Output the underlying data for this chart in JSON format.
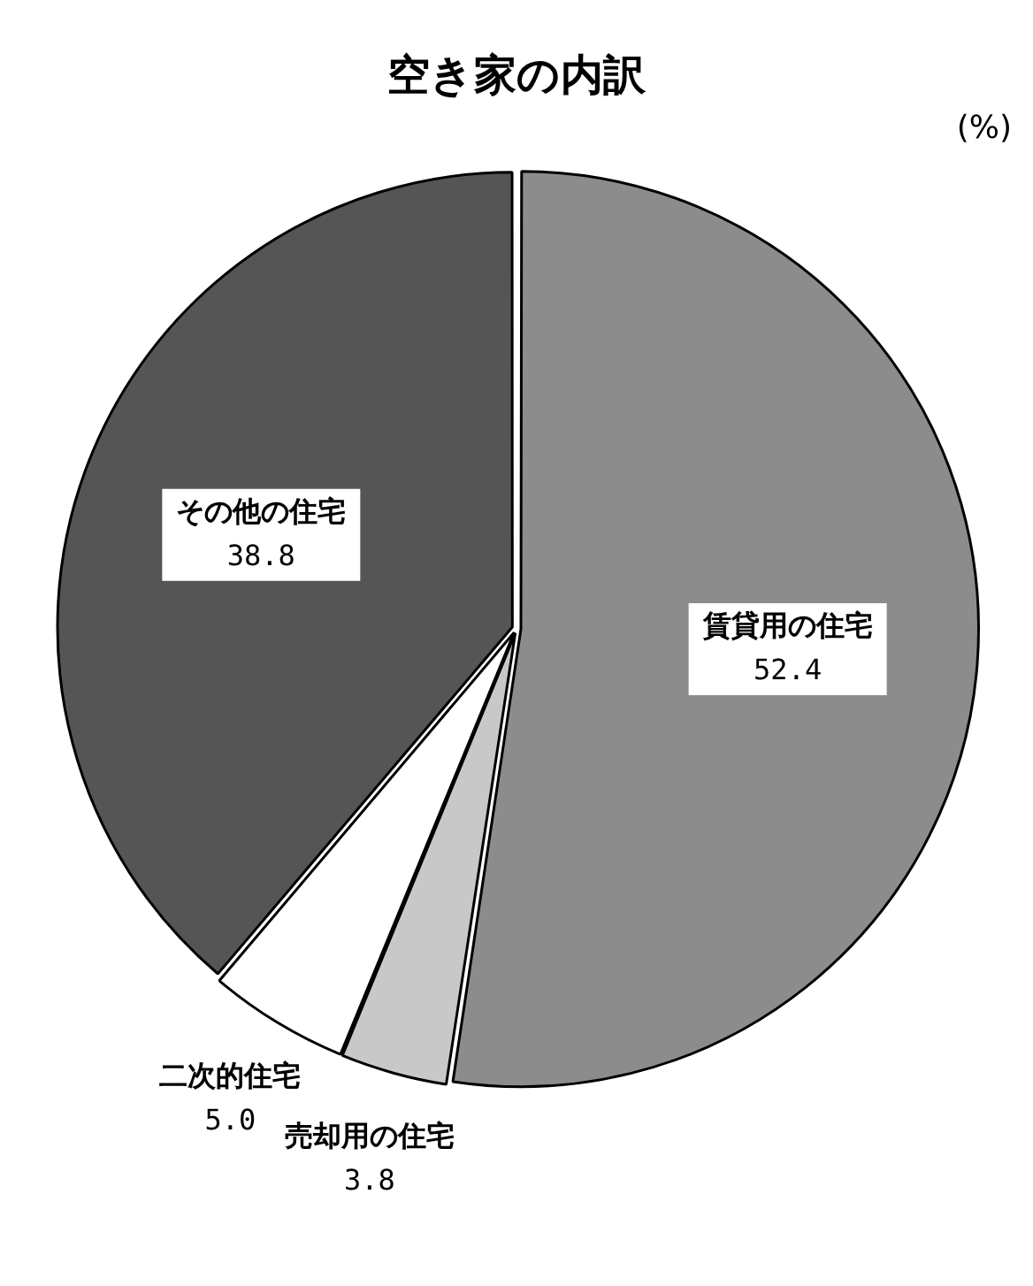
{
  "chart_data": {
    "type": "pie",
    "title": "空き家の内訳",
    "categories": [
      "賃貸用の住宅",
      "売却用の住宅",
      "二次的住宅",
      "その他の住宅"
    ],
    "values": [
      52.4,
      3.8,
      5.0,
      38.8
    ],
    "colors": [
      "#8c8c8c",
      "#c8c8c8",
      "#ffffff",
      "#555555"
    ],
    "value_labels": [
      "52.4",
      "3.8",
      "5.0",
      "38.8"
    ],
    "legend": false,
    "annotations": [
      "(%)"
    ]
  }
}
